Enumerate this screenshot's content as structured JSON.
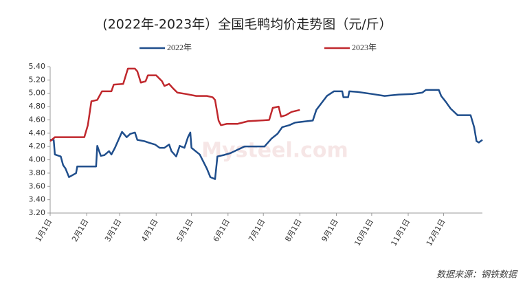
{
  "chart_data": {
    "type": "line",
    "title": "(2022年-2023年）全国毛鸭均价走势图（元/斤）",
    "source": "数据来源：钢铁数据",
    "watermark": "Mysteel.com",
    "legend": "top",
    "xlim": [
      0,
      367
    ],
    "xticks": [
      {
        "value": 0,
        "label": "1月1日"
      },
      {
        "value": 31,
        "label": "2月1日"
      },
      {
        "value": 59,
        "label": "3月1日"
      },
      {
        "value": 90,
        "label": "4月1日"
      },
      {
        "value": 120,
        "label": "5月1日"
      },
      {
        "value": 151,
        "label": "6月1日"
      },
      {
        "value": 181,
        "label": "7月1日"
      },
      {
        "value": 212,
        "label": "8月1日"
      },
      {
        "value": 243,
        "label": "9月1日"
      },
      {
        "value": 273,
        "label": "10月1日"
      },
      {
        "value": 304,
        "label": "11月1日"
      },
      {
        "value": 334,
        "label": "12月1日"
      }
    ],
    "ylim": [
      3.2,
      5.4
    ],
    "yticks": [
      {
        "value": 3.2,
        "label": "3.20"
      },
      {
        "value": 3.4,
        "label": "3.40"
      },
      {
        "value": 3.6,
        "label": "3.60"
      },
      {
        "value": 3.8,
        "label": "3.80"
      },
      {
        "value": 4.0,
        "label": "4.00"
      },
      {
        "value": 4.2,
        "label": "4.20"
      },
      {
        "value": 4.4,
        "label": "4.40"
      },
      {
        "value": 4.6,
        "label": "4.60"
      },
      {
        "value": 4.8,
        "label": "4.80"
      },
      {
        "value": 5.0,
        "label": "5.00"
      },
      {
        "value": 5.2,
        "label": "5.20"
      },
      {
        "value": 5.4,
        "label": "5.40"
      }
    ],
    "series": [
      {
        "name": "2022年",
        "color": "#1f4e8c",
        "x": [
          0,
          3,
          4,
          9,
          11,
          13,
          16,
          18,
          22,
          23,
          30,
          39,
          40,
          43,
          46,
          50,
          52,
          55,
          61,
          65,
          68,
          72,
          74,
          80,
          85,
          89,
          93,
          97,
          101,
          103,
          107,
          110,
          114,
          117,
          119,
          120,
          127,
          133,
          136,
          140,
          142,
          147,
          153,
          159,
          165,
          182,
          188,
          193,
          197,
          203,
          208,
          223,
          226,
          235,
          241,
          248,
          249,
          253,
          254,
          261,
          273,
          284,
          296,
          308,
          316,
          319,
          330,
          332,
          336,
          340,
          346,
          357,
          360,
          362,
          364,
          367
        ],
        "values": [
          4.3,
          4.3,
          4.08,
          4.05,
          3.92,
          3.87,
          3.74,
          3.76,
          3.8,
          3.9,
          3.9,
          3.9,
          4.21,
          4.06,
          4.07,
          4.13,
          4.08,
          4.18,
          4.42,
          4.34,
          4.39,
          4.41,
          4.3,
          4.28,
          4.25,
          4.23,
          4.18,
          4.18,
          4.23,
          4.13,
          4.05,
          4.21,
          4.18,
          4.34,
          4.41,
          4.18,
          4.08,
          3.87,
          3.74,
          3.71,
          4.05,
          4.07,
          4.1,
          4.15,
          4.2,
          4.2,
          4.32,
          4.39,
          4.49,
          4.52,
          4.56,
          4.59,
          4.75,
          4.96,
          5.03,
          5.03,
          4.94,
          4.94,
          5.03,
          5.02,
          4.99,
          4.96,
          4.98,
          4.99,
          5.01,
          5.05,
          5.05,
          4.96,
          4.87,
          4.77,
          4.67,
          4.67,
          4.49,
          4.28,
          4.26,
          4.3
        ]
      },
      {
        "name": "2023年",
        "color": "#c0282d",
        "x": [
          0,
          4,
          10,
          29,
          32,
          35,
          40,
          44,
          52,
          54,
          62,
          66,
          72,
          74,
          77,
          81,
          83,
          90,
          95,
          97,
          101,
          104,
          108,
          115,
          124,
          133,
          138,
          140,
          143,
          145,
          150,
          159,
          168,
          178,
          186,
          189,
          194,
          196,
          200,
          205,
          212
        ],
        "values": [
          4.28,
          4.34,
          4.34,
          4.34,
          4.52,
          4.88,
          4.9,
          5.03,
          5.03,
          5.13,
          5.14,
          5.37,
          5.37,
          5.33,
          5.16,
          5.18,
          5.27,
          5.27,
          5.18,
          5.11,
          5.14,
          5.08,
          5.01,
          4.99,
          4.96,
          4.96,
          4.94,
          4.9,
          4.59,
          4.52,
          4.54,
          4.54,
          4.58,
          4.59,
          4.6,
          4.78,
          4.8,
          4.65,
          4.67,
          4.72,
          4.75
        ]
      }
    ]
  }
}
